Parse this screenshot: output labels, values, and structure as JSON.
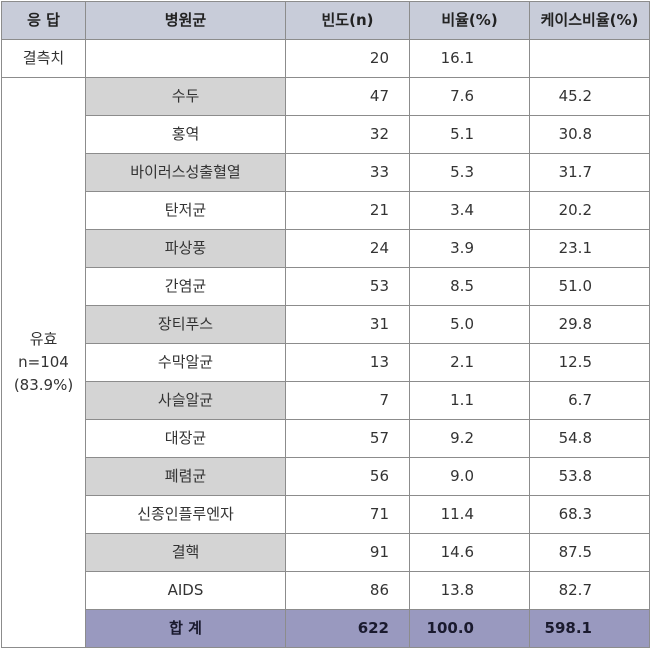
{
  "header": {
    "response": "응 답",
    "group": "병원균",
    "freq": "빈도(n)",
    "ratio": "비율(%)",
    "case_ratio": "케이스비율(%)"
  },
  "missing": {
    "label": "결측치",
    "group": "",
    "freq": "20",
    "ratio": "16.1",
    "case_ratio": ""
  },
  "valid": {
    "line1": "유효",
    "line2": "n=104",
    "line3": "(83.9%)"
  },
  "rows": [
    {
      "group": "수두",
      "freq": "47",
      "ratio": "7.6",
      "case_ratio": "45.2"
    },
    {
      "group": "홍역",
      "freq": "32",
      "ratio": "5.1",
      "case_ratio": "30.8"
    },
    {
      "group": "바이러스성출혈열",
      "freq": "33",
      "ratio": "5.3",
      "case_ratio": "31.7"
    },
    {
      "group": "탄저균",
      "freq": "21",
      "ratio": "3.4",
      "case_ratio": "20.2"
    },
    {
      "group": "파상풍",
      "freq": "24",
      "ratio": "3.9",
      "case_ratio": "23.1"
    },
    {
      "group": "간염균",
      "freq": "53",
      "ratio": "8.5",
      "case_ratio": "51.0"
    },
    {
      "group": "장티푸스",
      "freq": "31",
      "ratio": "5.0",
      "case_ratio": "29.8"
    },
    {
      "group": "수막알균",
      "freq": "13",
      "ratio": "2.1",
      "case_ratio": "12.5"
    },
    {
      "group": "사슬알균",
      "freq": "7",
      "ratio": "1.1",
      "case_ratio": "6.7"
    },
    {
      "group": "대장균",
      "freq": "57",
      "ratio": "9.2",
      "case_ratio": "54.8"
    },
    {
      "group": "폐렴균",
      "freq": "56",
      "ratio": "9.0",
      "case_ratio": "53.8"
    },
    {
      "group": "신종인플루엔자",
      "freq": "71",
      "ratio": "11.4",
      "case_ratio": "68.3"
    },
    {
      "group": "결핵",
      "freq": "91",
      "ratio": "14.6",
      "case_ratio": "87.5"
    },
    {
      "group": "AIDS",
      "freq": "86",
      "ratio": "13.8",
      "case_ratio": "82.7"
    }
  ],
  "total": {
    "label": "합 계",
    "freq": "622",
    "ratio": "100.0",
    "case_ratio": "598.1"
  },
  "colors": {
    "header_bg": "#c8ccd9",
    "shade_bg": "#d4d4d4",
    "total_bg": "#9999bf",
    "border": "#8c8c8c"
  }
}
